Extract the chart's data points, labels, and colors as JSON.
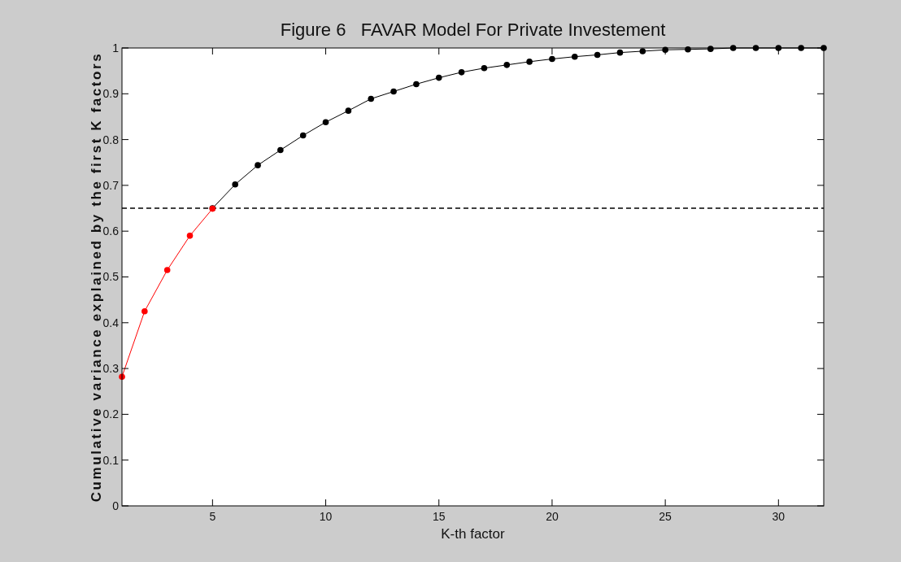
{
  "chart_data": {
    "type": "line",
    "title": "Figure 6   FAVAR Model For Private Investement",
    "xlabel": "K-th factor",
    "ylabel": "Cumulative variance explained by the first K factors",
    "xlim": [
      1,
      32
    ],
    "xticks": [
      5,
      10,
      15,
      20,
      25,
      30
    ],
    "ylim": [
      0,
      1
    ],
    "yticks": [
      0,
      0.1,
      0.2,
      0.3,
      0.4,
      0.5,
      0.6,
      0.7,
      0.8,
      0.9,
      1
    ],
    "marker": "circle",
    "line_style": "solid",
    "series": [
      {
        "color": "#000000",
        "x": [
          5,
          6,
          7,
          8,
          9,
          10,
          11,
          12,
          13,
          14,
          15,
          16,
          17,
          18,
          19,
          20,
          21,
          22,
          23,
          24,
          25,
          26,
          27,
          28,
          29,
          30,
          31,
          32
        ],
        "values": [
          0.65,
          0.702,
          0.744,
          0.777,
          0.809,
          0.838,
          0.863,
          0.889,
          0.905,
          0.921,
          0.935,
          0.947,
          0.956,
          0.963,
          0.97,
          0.976,
          0.981,
          0.985,
          0.99,
          0.993,
          0.996,
          0.997,
          0.998,
          1,
          1,
          1,
          1,
          1
        ]
      },
      {
        "color": "#ff0000",
        "x": [
          1,
          2,
          3,
          4,
          5
        ],
        "values": [
          0.282,
          0.425,
          0.515,
          0.59,
          0.649
        ]
      }
    ],
    "ref_lines": [
      {
        "axis": "y",
        "value": 0.65,
        "color": "#000000",
        "line_style": "dashed"
      }
    ]
  }
}
